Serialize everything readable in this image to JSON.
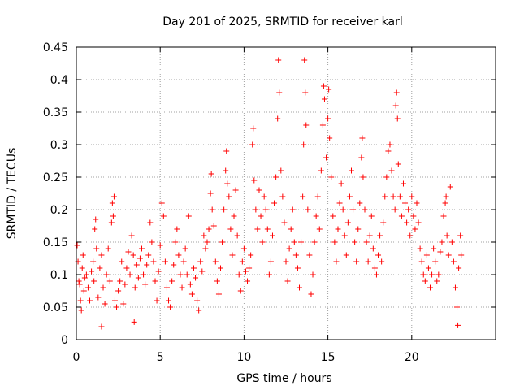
{
  "chart_data": {
    "type": "scatter",
    "title": "Day 201 of 2025, SRMTID for receiver karl",
    "xlabel": "GPS time / hours",
    "ylabel": "SRMTID / TECUs",
    "xlim": [
      0,
      25
    ],
    "ylim": [
      0,
      0.45
    ],
    "xticks": [
      0,
      5,
      10,
      15,
      20
    ],
    "xtick_labels": [
      "0",
      "5",
      "10",
      "15",
      "20"
    ],
    "yticks": [
      0,
      0.05,
      0.1,
      0.15,
      0.2,
      0.25,
      0.3,
      0.35,
      0.4,
      0.45
    ],
    "ytick_labels": [
      "0",
      "0.05",
      "0.1",
      "0.15",
      "0.2",
      "0.25",
      "0.3",
      "0.35",
      "0.4",
      "0.45"
    ],
    "grid": true,
    "marker": "+",
    "color": "#ff0000",
    "series": [
      {
        "name": "SRMTID",
        "points": [
          [
            0.05,
            0.145
          ],
          [
            0.1,
            0.12
          ],
          [
            0.15,
            0.09
          ],
          [
            0.2,
            0.085
          ],
          [
            0.25,
            0.06
          ],
          [
            0.3,
            0.045
          ],
          [
            0.35,
            0.11
          ],
          [
            0.4,
            0.13
          ],
          [
            0.45,
            0.075
          ],
          [
            0.5,
            0.095
          ],
          [
            0.6,
            0.1
          ],
          [
            0.7,
            0.08
          ],
          [
            0.8,
            0.06
          ],
          [
            0.9,
            0.105
          ],
          [
            1.0,
            0.12
          ],
          [
            1.05,
            0.09
          ],
          [
            1.1,
            0.17
          ],
          [
            1.15,
            0.185
          ],
          [
            1.2,
            0.14
          ],
          [
            1.3,
            0.065
          ],
          [
            1.4,
            0.11
          ],
          [
            1.5,
            0.13
          ],
          [
            1.6,
            0.08
          ],
          [
            1.7,
            0.055
          ],
          [
            1.5,
            0.02
          ],
          [
            1.8,
            0.1
          ],
          [
            1.9,
            0.14
          ],
          [
            2.0,
            0.09
          ],
          [
            2.1,
            0.18
          ],
          [
            2.15,
            0.21
          ],
          [
            2.2,
            0.19
          ],
          [
            2.25,
            0.22
          ],
          [
            2.3,
            0.06
          ],
          [
            2.4,
            0.05
          ],
          [
            2.5,
            0.075
          ],
          [
            2.6,
            0.09
          ],
          [
            2.7,
            0.12
          ],
          [
            2.8,
            0.055
          ],
          [
            2.9,
            0.085
          ],
          [
            3.0,
            0.11
          ],
          [
            3.1,
            0.135
          ],
          [
            3.2,
            0.1
          ],
          [
            3.3,
            0.16
          ],
          [
            3.4,
            0.13
          ],
          [
            3.5,
            0.08
          ],
          [
            3.45,
            0.027
          ],
          [
            3.6,
            0.115
          ],
          [
            3.7,
            0.095
          ],
          [
            3.8,
            0.125
          ],
          [
            3.9,
            0.14
          ],
          [
            4.0,
            0.1
          ],
          [
            4.1,
            0.085
          ],
          [
            4.2,
            0.115
          ],
          [
            4.3,
            0.13
          ],
          [
            4.4,
            0.18
          ],
          [
            4.5,
            0.15
          ],
          [
            4.6,
            0.12
          ],
          [
            4.7,
            0.09
          ],
          [
            4.8,
            0.06
          ],
          [
            4.9,
            0.105
          ],
          [
            5.0,
            0.145
          ],
          [
            5.1,
            0.21
          ],
          [
            5.2,
            0.19
          ],
          [
            5.3,
            0.12
          ],
          [
            5.4,
            0.08
          ],
          [
            5.5,
            0.06
          ],
          [
            5.6,
            0.05
          ],
          [
            5.7,
            0.09
          ],
          [
            5.8,
            0.115
          ],
          [
            5.9,
            0.15
          ],
          [
            6.0,
            0.17
          ],
          [
            6.1,
            0.13
          ],
          [
            6.2,
            0.1
          ],
          [
            6.3,
            0.08
          ],
          [
            6.4,
            0.12
          ],
          [
            6.5,
            0.14
          ],
          [
            6.6,
            0.1
          ],
          [
            6.7,
            0.19
          ],
          [
            6.8,
            0.085
          ],
          [
            6.9,
            0.07
          ],
          [
            7.0,
            0.11
          ],
          [
            7.1,
            0.095
          ],
          [
            7.2,
            0.06
          ],
          [
            7.3,
            0.045
          ],
          [
            7.4,
            0.12
          ],
          [
            7.5,
            0.105
          ],
          [
            7.6,
            0.16
          ],
          [
            7.7,
            0.14
          ],
          [
            7.8,
            0.15
          ],
          [
            7.9,
            0.17
          ],
          [
            8.0,
            0.225
          ],
          [
            8.05,
            0.255
          ],
          [
            8.1,
            0.2
          ],
          [
            8.2,
            0.175
          ],
          [
            8.3,
            0.12
          ],
          [
            8.4,
            0.09
          ],
          [
            8.5,
            0.07
          ],
          [
            8.6,
            0.11
          ],
          [
            8.7,
            0.15
          ],
          [
            8.8,
            0.2
          ],
          [
            8.9,
            0.26
          ],
          [
            8.95,
            0.29
          ],
          [
            9.0,
            0.24
          ],
          [
            9.1,
            0.22
          ],
          [
            9.2,
            0.17
          ],
          [
            9.3,
            0.13
          ],
          [
            9.4,
            0.19
          ],
          [
            9.5,
            0.23
          ],
          [
            9.6,
            0.16
          ],
          [
            9.7,
            0.1
          ],
          [
            9.8,
            0.075
          ],
          [
            9.9,
            0.12
          ],
          [
            10.0,
            0.14
          ],
          [
            10.1,
            0.105
          ],
          [
            10.2,
            0.09
          ],
          [
            10.3,
            0.11
          ],
          [
            10.4,
            0.13
          ],
          [
            10.5,
            0.3
          ],
          [
            10.55,
            0.325
          ],
          [
            10.6,
            0.245
          ],
          [
            10.7,
            0.2
          ],
          [
            10.8,
            0.17
          ],
          [
            10.9,
            0.23
          ],
          [
            11.0,
            0.19
          ],
          [
            11.1,
            0.15
          ],
          [
            11.2,
            0.22
          ],
          [
            11.3,
            0.2
          ],
          [
            11.4,
            0.17
          ],
          [
            11.5,
            0.1
          ],
          [
            11.6,
            0.12
          ],
          [
            11.7,
            0.16
          ],
          [
            11.8,
            0.21
          ],
          [
            11.9,
            0.25
          ],
          [
            12.0,
            0.34
          ],
          [
            12.05,
            0.43
          ],
          [
            12.1,
            0.38
          ],
          [
            12.2,
            0.26
          ],
          [
            12.3,
            0.22
          ],
          [
            12.4,
            0.18
          ],
          [
            12.5,
            0.12
          ],
          [
            12.6,
            0.09
          ],
          [
            12.7,
            0.14
          ],
          [
            12.8,
            0.17
          ],
          [
            12.9,
            0.2
          ],
          [
            13.0,
            0.15
          ],
          [
            13.1,
            0.13
          ],
          [
            13.2,
            0.11
          ],
          [
            13.3,
            0.08
          ],
          [
            13.4,
            0.15
          ],
          [
            13.5,
            0.22
          ],
          [
            13.55,
            0.3
          ],
          [
            13.6,
            0.43
          ],
          [
            13.65,
            0.38
          ],
          [
            13.7,
            0.33
          ],
          [
            13.8,
            0.2
          ],
          [
            13.9,
            0.13
          ],
          [
            14.0,
            0.07
          ],
          [
            14.1,
            0.1
          ],
          [
            14.2,
            0.15
          ],
          [
            14.3,
            0.19
          ],
          [
            14.4,
            0.22
          ],
          [
            14.5,
            0.17
          ],
          [
            14.6,
            0.26
          ],
          [
            14.7,
            0.33
          ],
          [
            14.75,
            0.39
          ],
          [
            14.8,
            0.37
          ],
          [
            14.9,
            0.28
          ],
          [
            15.0,
            0.34
          ],
          [
            15.05,
            0.385
          ],
          [
            15.1,
            0.31
          ],
          [
            15.2,
            0.25
          ],
          [
            15.3,
            0.19
          ],
          [
            15.4,
            0.15
          ],
          [
            15.5,
            0.12
          ],
          [
            15.6,
            0.17
          ],
          [
            15.7,
            0.21
          ],
          [
            15.8,
            0.24
          ],
          [
            15.9,
            0.2
          ],
          [
            16.0,
            0.16
          ],
          [
            16.1,
            0.13
          ],
          [
            16.2,
            0.18
          ],
          [
            16.3,
            0.22
          ],
          [
            16.4,
            0.26
          ],
          [
            16.5,
            0.2
          ],
          [
            16.6,
            0.15
          ],
          [
            16.7,
            0.12
          ],
          [
            16.8,
            0.17
          ],
          [
            16.9,
            0.21
          ],
          [
            17.0,
            0.28
          ],
          [
            17.05,
            0.31
          ],
          [
            17.1,
            0.25
          ],
          [
            17.2,
            0.2
          ],
          [
            17.3,
            0.15
          ],
          [
            17.4,
            0.12
          ],
          [
            17.5,
            0.16
          ],
          [
            17.6,
            0.19
          ],
          [
            17.7,
            0.14
          ],
          [
            17.8,
            0.11
          ],
          [
            17.9,
            0.1
          ],
          [
            18.0,
            0.13
          ],
          [
            18.1,
            0.16
          ],
          [
            18.2,
            0.12
          ],
          [
            18.3,
            0.18
          ],
          [
            18.4,
            0.22
          ],
          [
            18.5,
            0.25
          ],
          [
            18.6,
            0.29
          ],
          [
            18.7,
            0.3
          ],
          [
            18.8,
            0.26
          ],
          [
            18.9,
            0.22
          ],
          [
            19.0,
            0.2
          ],
          [
            19.05,
            0.36
          ],
          [
            19.1,
            0.38
          ],
          [
            19.15,
            0.34
          ],
          [
            19.2,
            0.27
          ],
          [
            19.3,
            0.22
          ],
          [
            19.4,
            0.19
          ],
          [
            19.5,
            0.24
          ],
          [
            19.6,
            0.21
          ],
          [
            19.7,
            0.18
          ],
          [
            19.8,
            0.2
          ],
          [
            19.9,
            0.16
          ],
          [
            20.0,
            0.22
          ],
          [
            20.1,
            0.19
          ],
          [
            20.2,
            0.17
          ],
          [
            20.3,
            0.21
          ],
          [
            20.4,
            0.18
          ],
          [
            20.5,
            0.14
          ],
          [
            20.6,
            0.12
          ],
          [
            20.7,
            0.1
          ],
          [
            20.8,
            0.09
          ],
          [
            20.9,
            0.13
          ],
          [
            21.0,
            0.11
          ],
          [
            21.1,
            0.08
          ],
          [
            21.2,
            0.1
          ],
          [
            21.3,
            0.14
          ],
          [
            21.4,
            0.12
          ],
          [
            21.5,
            0.09
          ],
          [
            21.6,
            0.1
          ],
          [
            21.7,
            0.135
          ],
          [
            21.8,
            0.15
          ],
          [
            21.9,
            0.19
          ],
          [
            22.0,
            0.21
          ],
          [
            22.05,
            0.22
          ],
          [
            22.1,
            0.16
          ],
          [
            22.2,
            0.13
          ],
          [
            22.3,
            0.235
          ],
          [
            22.4,
            0.15
          ],
          [
            22.5,
            0.12
          ],
          [
            22.6,
            0.08
          ],
          [
            22.7,
            0.05
          ],
          [
            22.75,
            0.022
          ],
          [
            22.8,
            0.11
          ],
          [
            22.9,
            0.16
          ],
          [
            22.95,
            0.13
          ]
        ]
      }
    ]
  }
}
